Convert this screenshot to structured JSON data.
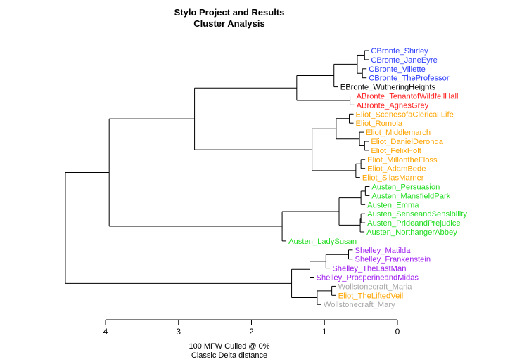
{
  "chart_data": {
    "type": "dendrogram",
    "title_lines": [
      "Stylo Project and Results",
      "Cluster Analysis"
    ],
    "caption_lines": [
      "100 MFW  Culled @ 0%",
      "Classic Delta distance"
    ],
    "xlim": [
      4.15,
      0
    ],
    "ticks": [
      4,
      3,
      2,
      1,
      0
    ],
    "tick_labels": [
      "4",
      "3",
      "2",
      "1",
      "0"
    ],
    "colors": {
      "CBronte": "#2b3bff",
      "EBronte": "#000000",
      "ABronte": "#ff2020",
      "Eliot": "#ffa500",
      "Austen": "#22dd22",
      "Shelley": "#a020f0",
      "Wollstonecraft": "#a8a8a8",
      "tree": "#000000"
    },
    "leaves": [
      {
        "label": "CBronte_Shirley",
        "author": "CBronte"
      },
      {
        "label": "CBronte_JaneEyre",
        "author": "CBronte"
      },
      {
        "label": "CBronte_Villette",
        "author": "CBronte"
      },
      {
        "label": "CBronte_TheProfessor",
        "author": "CBronte"
      },
      {
        "label": "EBronte_WutheringHeights",
        "author": "EBronte"
      },
      {
        "label": "ABronte_TenantofWildfellHall",
        "author": "ABronte"
      },
      {
        "label": "ABronte_AgnesGrey",
        "author": "ABronte"
      },
      {
        "label": "Eliot_ScenesofaClerical Life",
        "author": "Eliot"
      },
      {
        "label": "Eliot_Romola",
        "author": "Eliot"
      },
      {
        "label": "Eliot_Middlemarch",
        "author": "Eliot"
      },
      {
        "label": "Eliot_DanielDeronda",
        "author": "Eliot"
      },
      {
        "label": "Eliot_FelixHolt",
        "author": "Eliot"
      },
      {
        "label": "Eliot_MillontheFloss",
        "author": "Eliot"
      },
      {
        "label": "Eliot_AdamBede",
        "author": "Eliot"
      },
      {
        "label": "Eliot_SilasMarner",
        "author": "Eliot"
      },
      {
        "label": "Austen_Persuasion",
        "author": "Austen"
      },
      {
        "label": "Austen_MansfieldPark",
        "author": "Austen"
      },
      {
        "label": "Austen_Emma",
        "author": "Austen"
      },
      {
        "label": "Austen_SenseandSensibility",
        "author": "Austen"
      },
      {
        "label": "Austen_PrideandPrejudice",
        "author": "Austen"
      },
      {
        "label": "Austen_NorthangerAbbey",
        "author": "Austen"
      },
      {
        "label": "Austen_LadySusan",
        "author": "Austen"
      },
      {
        "label": "Shelley_Matilda",
        "author": "Shelley"
      },
      {
        "label": "Shelley_Frankenstein",
        "author": "Shelley"
      },
      {
        "label": "Shelley_TheLastMan",
        "author": "Shelley"
      },
      {
        "label": "Shelley_ProsperineandMidas",
        "author": "Shelley"
      },
      {
        "label": "Wollstonecraft_Maria",
        "author": "Wollstonecraft"
      },
      {
        "label": "Eliot_TheLiftedVeil",
        "author": "Eliot"
      },
      {
        "label": "Wollstonecraft_Mary",
        "author": "Wollstonecraft"
      }
    ],
    "merges": [
      {
        "id": "cb1",
        "children": [
          0,
          1
        ],
        "height": 0.45
      },
      {
        "id": "cb2",
        "children": [
          2,
          3
        ],
        "height": 0.48
      },
      {
        "id": "cb",
        "children": [
          "cb1",
          "cb2"
        ],
        "height": 0.55
      },
      {
        "id": "cbe",
        "children": [
          "cb",
          4
        ],
        "height": 0.87
      },
      {
        "id": "ab",
        "children": [
          5,
          6
        ],
        "height": 0.65
      },
      {
        "id": "bronte",
        "children": [
          "cbe",
          "ab"
        ],
        "height": 1.38
      },
      {
        "id": "el1",
        "children": [
          7,
          8
        ],
        "height": 0.66
      },
      {
        "id": "el2",
        "children": [
          10,
          11
        ],
        "height": 0.45
      },
      {
        "id": "el3",
        "children": [
          9,
          "el2"
        ],
        "height": 0.52
      },
      {
        "id": "el4",
        "children": [
          "el1",
          "el3"
        ],
        "height": 0.84
      },
      {
        "id": "el5",
        "children": [
          12,
          13
        ],
        "height": 0.5
      },
      {
        "id": "el6",
        "children": [
          "el5",
          14
        ],
        "height": 0.57
      },
      {
        "id": "eliot",
        "children": [
          "el4",
          "el6"
        ],
        "height": 1.17
      },
      {
        "id": "be",
        "children": [
          "bronte",
          "eliot"
        ],
        "height": 2.78
      },
      {
        "id": "au1",
        "children": [
          15,
          16
        ],
        "height": 0.44
      },
      {
        "id": "au2",
        "children": [
          "au1",
          17
        ],
        "height": 0.5
      },
      {
        "id": "au3",
        "children": [
          18,
          19
        ],
        "height": 0.5
      },
      {
        "id": "au4",
        "children": [
          "au3",
          20
        ],
        "height": 0.51
      },
      {
        "id": "au5",
        "children": [
          "au2",
          "au4"
        ],
        "height": 0.8
      },
      {
        "id": "austen",
        "children": [
          "au5",
          21
        ],
        "height": 1.58
      },
      {
        "id": "bea",
        "children": [
          "be",
          "austen"
        ],
        "height": 3.95
      },
      {
        "id": "sh1",
        "children": [
          22,
          23
        ],
        "height": 0.67
      },
      {
        "id": "sh2",
        "children": [
          "sh1",
          24
        ],
        "height": 0.98
      },
      {
        "id": "sh3",
        "children": [
          "sh2",
          25
        ],
        "height": 1.2
      },
      {
        "id": "wo1",
        "children": [
          26,
          27
        ],
        "height": 0.9
      },
      {
        "id": "wo2",
        "children": [
          "wo1",
          28
        ],
        "height": 1.1
      },
      {
        "id": "sw",
        "children": [
          "sh3",
          "wo2"
        ],
        "height": 1.45
      },
      {
        "id": "root",
        "children": [
          "bea",
          "sw"
        ],
        "height": 4.55
      }
    ]
  }
}
